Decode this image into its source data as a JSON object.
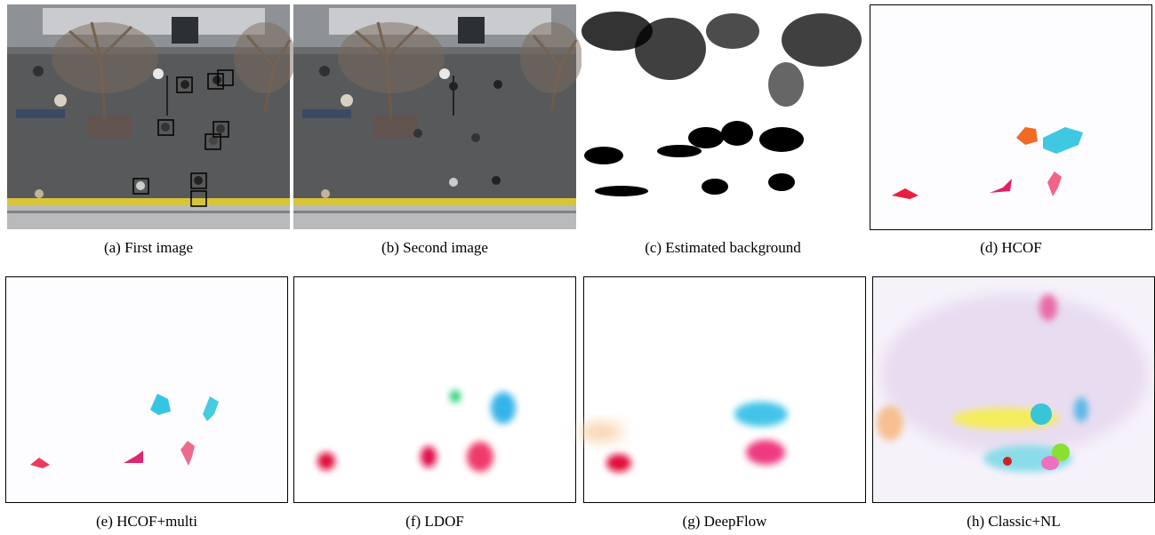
{
  "panels": [
    {
      "caption": "(a) First image"
    },
    {
      "caption": "(b) Second image"
    },
    {
      "caption": "(c) Estimated background"
    },
    {
      "caption": "(d) HCOF"
    },
    {
      "caption": "(e) HCOF+multi"
    },
    {
      "caption": "(f) LDOF"
    },
    {
      "caption": "(g) DeepFlow"
    },
    {
      "caption": "(h) Classic+NL"
    }
  ]
}
